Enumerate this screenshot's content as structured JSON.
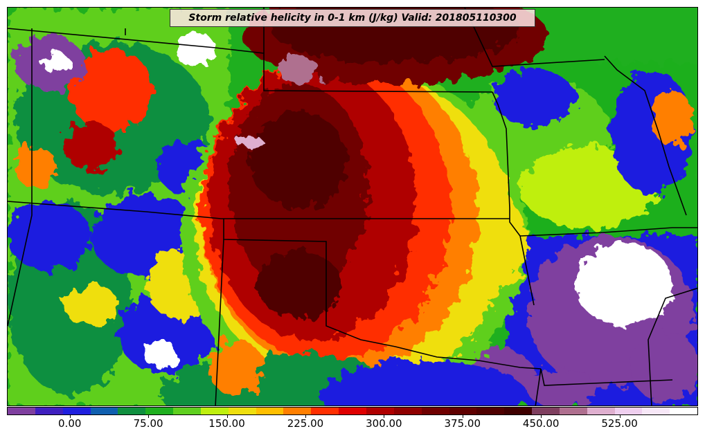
{
  "title": "Storm relative helicity in 0-1 km (J/kg) Valid: 201805110300",
  "colorbar": {
    "colors": [
      "#7f3f9f",
      "#3f1fbf",
      "#1f1fdf",
      "#0f5faf",
      "#0f8f3f",
      "#1faf1f",
      "#5fcf1f",
      "#bfef0f",
      "#efdf0f",
      "#ffbf00",
      "#ff7f00",
      "#ff2f00",
      "#df0000",
      "#af0000",
      "#8f0000",
      "#6f0000",
      "#5f0000",
      "#4f0000",
      "#3f0000",
      "#7f3f5f",
      "#af6f8f",
      "#dfafcf",
      "#efcfef",
      "#f7e7f7",
      "#ffffff"
    ],
    "tick_labels": [
      "0.00",
      "75.00",
      "150.00",
      "225.00",
      "300.00",
      "375.00",
      "450.00",
      "525.00"
    ],
    "tick_values": [
      0,
      75,
      150,
      225,
      300,
      375,
      450,
      525
    ],
    "min": -60,
    "max": 600
  }
}
